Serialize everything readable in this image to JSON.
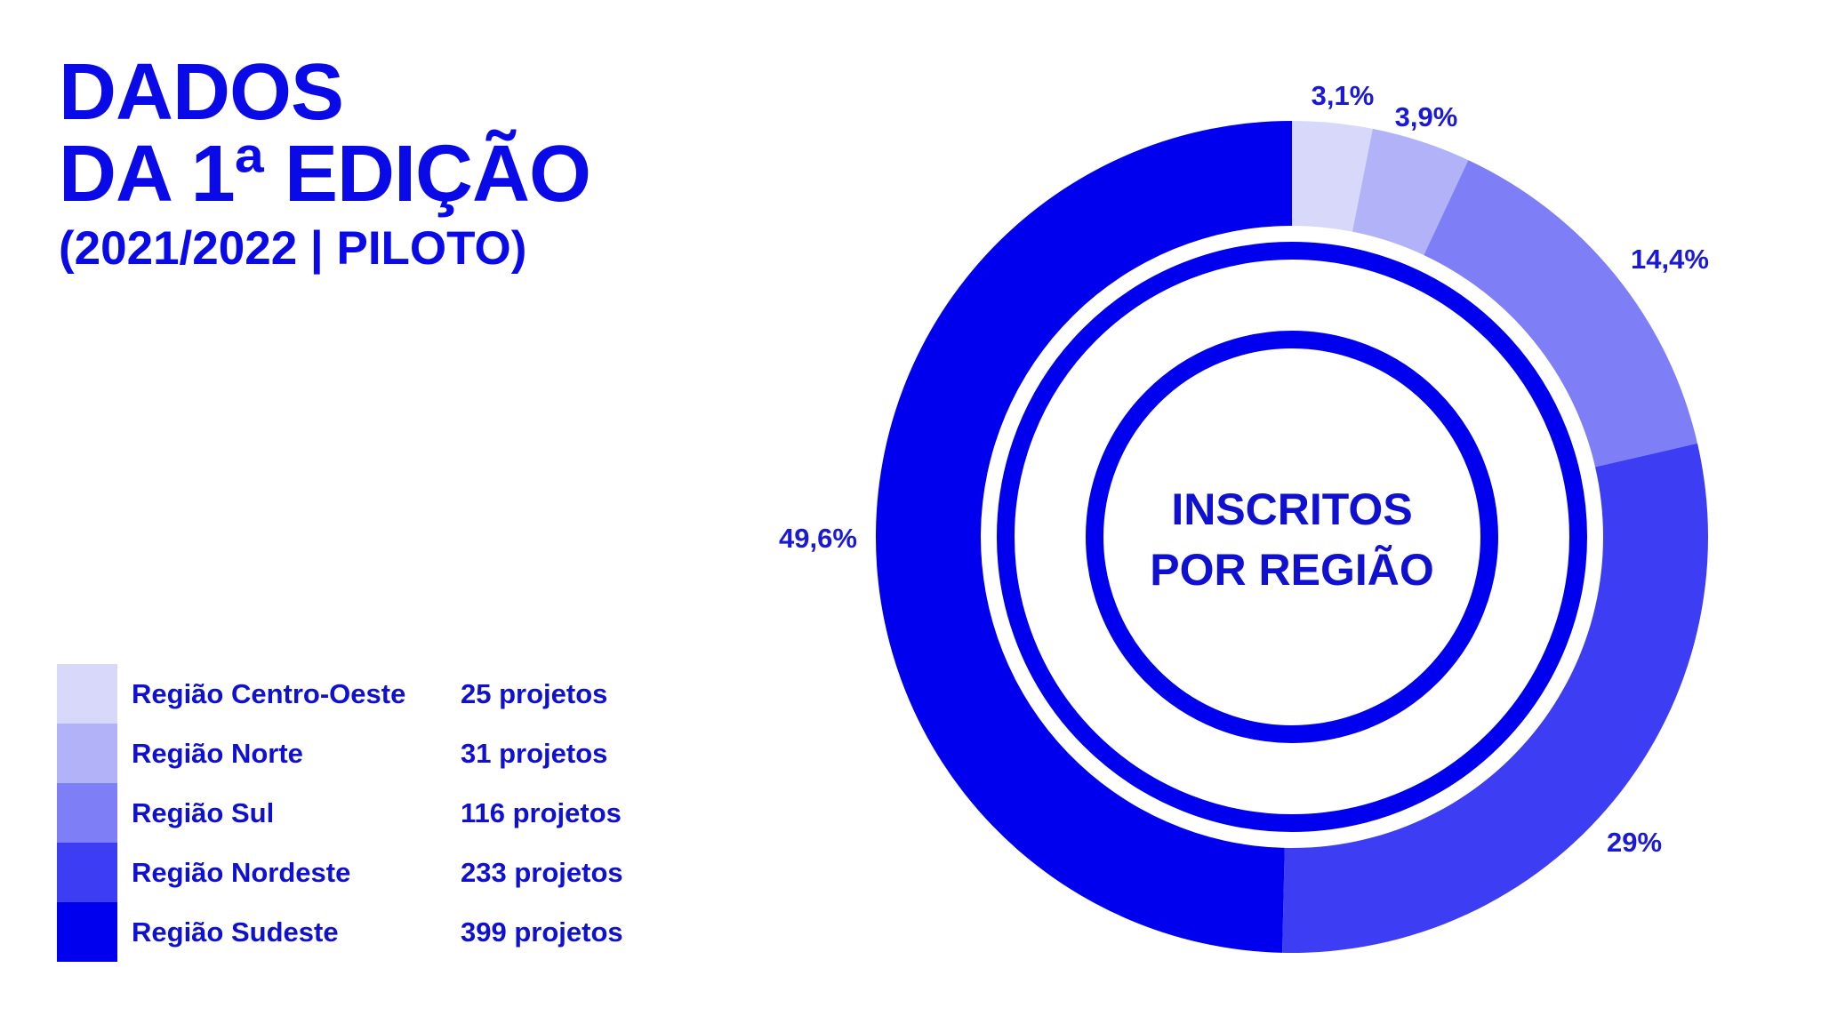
{
  "title": {
    "line1": "DADOS",
    "line2": "DA 1ª EDIÇÃO",
    "line3": "(2021/2022 | PILOTO)"
  },
  "chart_data": {
    "type": "pie",
    "center_label": [
      "INSCRITOS",
      "POR REGIÃO"
    ],
    "categories": [
      "Região Centro-Oeste",
      "Região Norte",
      "Região Sul",
      "Região Nordeste",
      "Região Sudeste"
    ],
    "values": [
      25,
      31,
      116,
      233,
      399
    ],
    "value_labels": [
      "25 projetos",
      "31 projetos",
      "116 projetos",
      "233 projetos",
      "399 projetos"
    ],
    "percent_labels": [
      "3,1%",
      "3,9%",
      "14,4%",
      "29%",
      "49,6%"
    ],
    "percents": [
      3.1,
      3.9,
      14.4,
      29.0,
      49.6
    ],
    "colors": [
      "#d8d8fb",
      "#b2b2f8",
      "#7e7ef6",
      "#3d3df4",
      "#0000ee"
    ],
    "legend_position": "bottom-left"
  }
}
